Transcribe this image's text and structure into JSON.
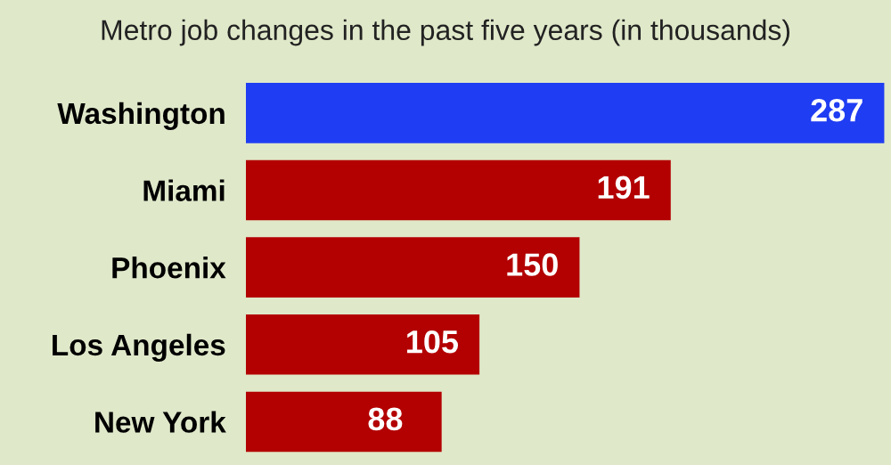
{
  "chart_data": {
    "type": "bar",
    "orientation": "horizontal",
    "title": "Metro job changes in the past five years (in thousands)",
    "categories": [
      "Washington",
      "Miami",
      "Phoenix",
      "Los Angeles",
      "New York"
    ],
    "values": [
      287,
      191,
      150,
      105,
      88
    ],
    "colors": [
      "#1f3df2",
      "#b30000",
      "#b30000",
      "#b30000",
      "#b30000"
    ],
    "data_labels": true,
    "grid": false,
    "legend": false
  }
}
